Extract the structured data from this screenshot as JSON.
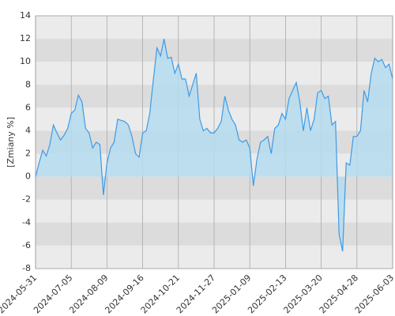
{
  "chart_data": {
    "type": "area",
    "y_label": "[Zmiany %]",
    "color": "#3d9be6",
    "fill": "#b5dcf0",
    "ylim": [
      -8,
      14
    ],
    "yticks": [
      -8,
      -6,
      -4,
      -2,
      0,
      2,
      4,
      6,
      8,
      10,
      12,
      14
    ],
    "grid": true,
    "categories": [
      "2024-05-31",
      null,
      null,
      null,
      null,
      null,
      null,
      null,
      null,
      null,
      "2024-07-05",
      null,
      null,
      null,
      null,
      null,
      null,
      null,
      null,
      null,
      "2024-08-09",
      null,
      null,
      null,
      null,
      null,
      null,
      null,
      null,
      null,
      "2024-09-16",
      null,
      null,
      null,
      null,
      null,
      null,
      null,
      null,
      null,
      "2024-10-21",
      null,
      null,
      null,
      null,
      null,
      null,
      null,
      null,
      null,
      "2024-11-27",
      null,
      null,
      null,
      null,
      null,
      null,
      null,
      null,
      null,
      "2025-01-09",
      null,
      null,
      null,
      null,
      null,
      null,
      null,
      null,
      null,
      "2025-02-13",
      null,
      null,
      null,
      null,
      null,
      null,
      null,
      null,
      null,
      "2025-03-20",
      null,
      null,
      null,
      null,
      null,
      null,
      null,
      null,
      null,
      "2025-04-28",
      null,
      null,
      null,
      null,
      null,
      null,
      null,
      null,
      null,
      "2025-06-03"
    ],
    "values": [
      0,
      1.2,
      2.3,
      1.8,
      2.8,
      4.5,
      3.8,
      3.2,
      3.6,
      4.2,
      5.5,
      5.8,
      7.1,
      6.5,
      4.2,
      3.8,
      2.5,
      3.0,
      2.8,
      -1.6,
      1.2,
      2.5,
      3.0,
      5.0,
      4.9,
      4.8,
      4.5,
      3.5,
      2.0,
      1.7,
      3.8,
      4.0,
      5.5,
      8.5,
      11.2,
      10.5,
      12.0,
      10.3,
      10.4,
      9.0,
      9.8,
      8.5,
      8.5,
      7.0,
      8.0,
      9.0,
      5.0,
      4.0,
      4.2,
      3.8,
      3.8,
      4.2,
      4.8,
      7.0,
      5.8,
      5.0,
      4.5,
      3.2,
      3.0,
      3.2,
      2.5,
      -0.8,
      1.5,
      3.0,
      3.2,
      3.5,
      2.0,
      4.2,
      4.5,
      5.5,
      5.0,
      6.8,
      7.5,
      8.2,
      6.5,
      4.0,
      6.0,
      4.0,
      5.0,
      7.3,
      7.5,
      6.8,
      7.0,
      4.5,
      4.8,
      -5.0,
      -6.5,
      1.2,
      1.0,
      3.5,
      3.5,
      4.0,
      7.5,
      6.5,
      9.0,
      10.3,
      10.0,
      10.2,
      9.5,
      9.8,
      8.5
    ]
  }
}
